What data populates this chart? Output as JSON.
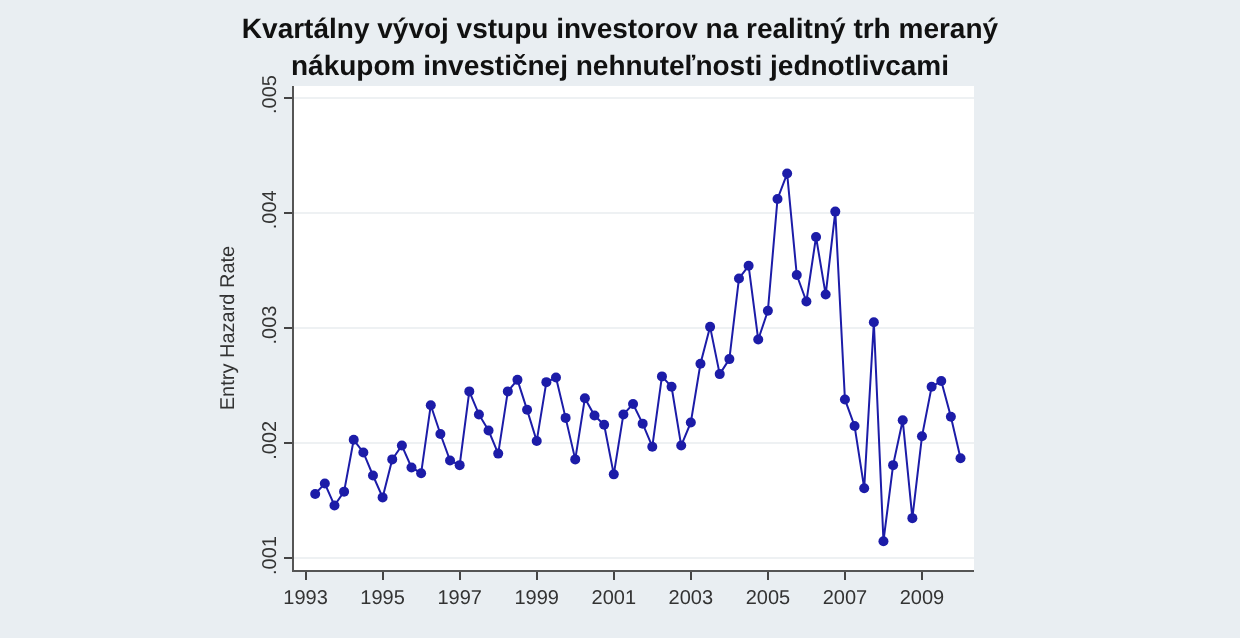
{
  "chart_data": {
    "type": "line",
    "title": "Kvartálny vývoj vstupu investorov na realitný trh meraný\nnákupom investičnej nehnuteľnosti jednotlivcami",
    "ylabel": "Entry Hazard Rate",
    "x": [
      1993.25,
      1993.5,
      1993.75,
      1994,
      1994.25,
      1994.5,
      1994.75,
      1995,
      1995.25,
      1995.5,
      1995.75,
      1996,
      1996.25,
      1996.5,
      1996.75,
      1997,
      1997.25,
      1997.5,
      1997.75,
      1998,
      1998.25,
      1998.5,
      1998.75,
      1999,
      1999.25,
      1999.5,
      1999.75,
      2000,
      2000.25,
      2000.5,
      2000.75,
      2001,
      2001.25,
      2001.5,
      2001.75,
      2002,
      2002.25,
      2002.5,
      2002.75,
      2003,
      2003.25,
      2003.5,
      2003.75,
      2004,
      2004.25,
      2004.5,
      2004.75,
      2005,
      2005.25,
      2005.5,
      2005.75,
      2006,
      2006.25,
      2006.5,
      2006.75,
      2007,
      2007.25,
      2007.5,
      2007.75,
      2008,
      2008.25,
      2008.5,
      2008.75,
      2009,
      2009.25,
      2009.5,
      2009.75,
      2010
    ],
    "series": [
      {
        "color": "#1c1ca8",
        "values": [
          0.00156,
          0.00165,
          0.00146,
          0.00158,
          0.00203,
          0.00192,
          0.00172,
          0.00153,
          0.00186,
          0.00198,
          0.00179,
          0.00174,
          0.00233,
          0.00208,
          0.00185,
          0.00181,
          0.00245,
          0.00225,
          0.00211,
          0.00191,
          0.00245,
          0.00255,
          0.00229,
          0.00202,
          0.00253,
          0.00257,
          0.00222,
          0.00186,
          0.00239,
          0.00224,
          0.00216,
          0.00173,
          0.00225,
          0.00234,
          0.00217,
          0.00197,
          0.00258,
          0.00249,
          0.00198,
          0.00218,
          0.00269,
          0.00301,
          0.0026,
          0.00273,
          0.00343,
          0.00354,
          0.0029,
          0.00315,
          0.00412,
          0.00434,
          0.00346,
          0.00323,
          0.00379,
          0.00329,
          0.00401,
          0.00238,
          0.00215,
          0.00161,
          0.00305,
          0.00115,
          0.00181,
          0.0022,
          0.00135,
          0.00206,
          0.00249,
          0.00254,
          0.00223,
          0.00187
        ]
      }
    ],
    "xlim": [
      1992.7,
      2010.35
    ],
    "xticks": [
      1993,
      1995,
      1997,
      1999,
      2001,
      2003,
      2005,
      2007,
      2009
    ],
    "ylim": [
      0.0009,
      0.0051
    ],
    "yticks": [
      {
        "value": 0.001,
        "label": ".001"
      },
      {
        "value": 0.002,
        "label": ".002"
      },
      {
        "value": 0.003,
        "label": ".003"
      },
      {
        "value": 0.004,
        "label": ".004"
      },
      {
        "value": 0.005,
        "label": ".005"
      }
    ],
    "grid": "y",
    "marker": "circle",
    "line_style": "solid"
  }
}
